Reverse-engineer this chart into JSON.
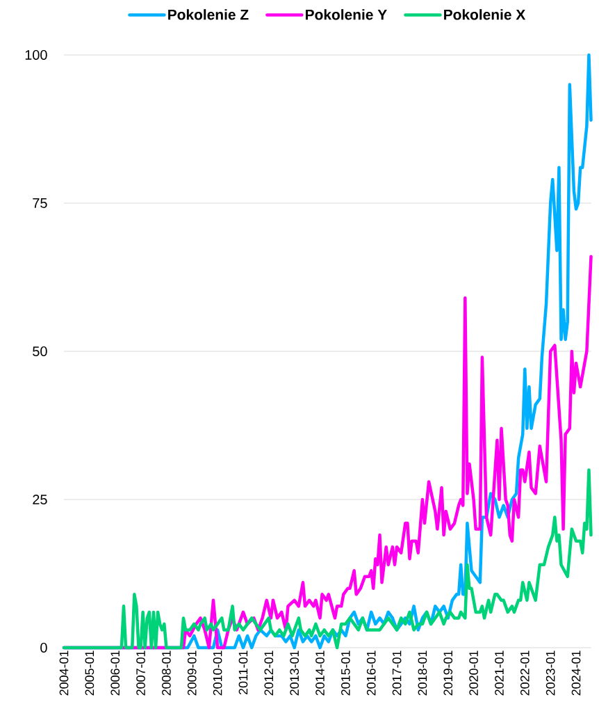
{
  "chart_data": {
    "type": "line",
    "xlim": [
      "2004-01",
      "2024-08"
    ],
    "xticks": [
      "2004-01",
      "2005-01",
      "2006-01",
      "2007-01",
      "2008-01",
      "2009-01",
      "2010-01",
      "2011-01",
      "2012-01",
      "2013-01",
      "2014-01",
      "2015-01",
      "2016-01",
      "2017-01",
      "2018-01",
      "2019-01",
      "2020-01",
      "2021-01",
      "2022-01",
      "2023-01",
      "2024-01"
    ],
    "ylim": [
      0,
      100
    ],
    "yticks": [
      0,
      25,
      50,
      75,
      100
    ],
    "grid": "y",
    "legend": "top",
    "marker": "none",
    "line_style": "solid",
    "series": [
      {
        "name": "Pokolenie Z",
        "color": "#00b0ff",
        "x": [
          "2004-01",
          "2008-11",
          "2009-02",
          "2009-04",
          "2009-11",
          "2010-01",
          "2010-03",
          "2010-09",
          "2010-11",
          "2011-01",
          "2011-03",
          "2011-05",
          "2011-07",
          "2011-09",
          "2011-12",
          "2012-02",
          "2012-04",
          "2012-07",
          "2012-09",
          "2012-11",
          "2013-01",
          "2013-03",
          "2013-05",
          "2013-07",
          "2013-09",
          "2013-11",
          "2014-01",
          "2014-03",
          "2014-05",
          "2014-07",
          "2014-09",
          "2014-11",
          "2015-01",
          "2015-03",
          "2015-05",
          "2015-07",
          "2015-09",
          "2015-11",
          "2016-01",
          "2016-03",
          "2016-05",
          "2016-07",
          "2016-09",
          "2016-11",
          "2017-01",
          "2017-03",
          "2017-05",
          "2017-07",
          "2017-09",
          "2017-11",
          "2018-01",
          "2018-03",
          "2018-05",
          "2018-07",
          "2018-09",
          "2018-11",
          "2019-01",
          "2019-03",
          "2019-05",
          "2019-06",
          "2019-07",
          "2019-08",
          "2019-09",
          "2019-10",
          "2019-11",
          "2019-12",
          "2020-02",
          "2020-04",
          "2020-05",
          "2020-07",
          "2020-09",
          "2020-11",
          "2021-01",
          "2021-03",
          "2021-05",
          "2021-07",
          "2021-09",
          "2021-10",
          "2021-12",
          "2022-01",
          "2022-02",
          "2022-03",
          "2022-04",
          "2022-06",
          "2022-08",
          "2022-09",
          "2022-11",
          "2023-01",
          "2023-02",
          "2023-04",
          "2023-05",
          "2023-06",
          "2023-07",
          "2023-08",
          "2023-09",
          "2023-10",
          "2023-12",
          "2024-01",
          "2024-02",
          "2024-03",
          "2024-04",
          "2024-06",
          "2024-07",
          "2024-08"
        ],
        "values": [
          0,
          0,
          2,
          0,
          0,
          3,
          0,
          0,
          2,
          0,
          2,
          0,
          2,
          3,
          2,
          3,
          2,
          2,
          1,
          2,
          0,
          3,
          1,
          2,
          1,
          2,
          0,
          2,
          1,
          3,
          2,
          3,
          2,
          5,
          6,
          4,
          5,
          3,
          6,
          4,
          5,
          4,
          6,
          5,
          3,
          4,
          5,
          4,
          7,
          3,
          5,
          6,
          4,
          7,
          6,
          7,
          5,
          8,
          9,
          9,
          14,
          9,
          9,
          21,
          17,
          13,
          12,
          11,
          22,
          22,
          26,
          25,
          22,
          24,
          22,
          25,
          26,
          32,
          36,
          47,
          37,
          44,
          37,
          41,
          42,
          49,
          58,
          75,
          79,
          67,
          81,
          52,
          57,
          52,
          55,
          95,
          77,
          74,
          75,
          81,
          81,
          88,
          100,
          89
        ]
      },
      {
        "name": "Pokolenie Y",
        "color": "#ff00ee",
        "x": [
          "2004-01",
          "2008-09",
          "2008-10",
          "2008-12",
          "2009-03",
          "2009-05",
          "2009-07",
          "2009-09",
          "2009-11",
          "2010-01",
          "2010-04",
          "2010-06",
          "2010-08",
          "2010-10",
          "2011-01",
          "2011-03",
          "2011-06",
          "2011-08",
          "2011-10",
          "2011-12",
          "2012-02",
          "2012-03",
          "2012-05",
          "2012-07",
          "2012-09",
          "2012-10",
          "2013-01",
          "2013-03",
          "2013-05",
          "2013-06",
          "2013-08",
          "2013-10",
          "2013-11",
          "2014-01",
          "2014-02",
          "2014-04",
          "2014-05",
          "2014-08",
          "2014-09",
          "2014-11",
          "2014-12",
          "2015-02",
          "2015-03",
          "2015-05",
          "2015-06",
          "2015-08",
          "2015-10",
          "2015-12",
          "2016-01",
          "2016-02",
          "2016-03",
          "2016-04",
          "2016-05",
          "2016-06",
          "2016-08",
          "2016-09",
          "2016-11",
          "2016-12",
          "2017-01",
          "2017-03",
          "2017-05",
          "2017-06",
          "2017-07",
          "2017-08",
          "2017-10",
          "2017-11",
          "2018-01",
          "2018-02",
          "2018-04",
          "2018-07",
          "2018-08",
          "2018-10",
          "2018-11",
          "2018-12",
          "2019-02",
          "2019-04",
          "2019-06",
          "2019-07",
          "2019-08",
          "2019-09",
          "2019-10",
          "2019-11",
          "2020-01",
          "2020-02",
          "2020-04",
          "2020-05",
          "2020-07",
          "2020-09",
          "2020-12",
          "2021-01",
          "2021-02",
          "2021-04",
          "2021-05",
          "2021-06",
          "2021-07",
          "2021-08",
          "2021-10",
          "2021-11",
          "2021-12",
          "2022-01",
          "2022-03",
          "2022-04",
          "2022-06",
          "2022-08",
          "2022-11",
          "2023-01",
          "2023-03",
          "2023-06",
          "2023-07",
          "2023-08",
          "2023-10",
          "2023-11",
          "2023-12",
          "2024-01",
          "2024-03",
          "2024-06",
          "2024-08"
        ],
        "values": [
          0,
          0,
          3,
          2,
          4,
          5,
          3,
          0,
          8,
          0,
          0,
          3,
          5,
          3,
          6,
          4,
          5,
          3,
          5,
          8,
          5,
          8,
          5,
          6,
          3,
          7,
          8,
          7,
          11,
          7,
          8,
          7,
          8,
          5,
          9,
          8,
          9,
          5,
          7,
          7,
          9,
          10,
          10,
          13,
          9,
          10,
          12,
          12,
          13,
          10,
          15,
          14,
          19,
          11,
          17,
          14,
          17,
          14,
          17,
          16,
          21,
          21,
          15,
          18,
          18,
          16,
          25,
          21,
          28,
          23,
          20,
          27,
          19,
          23,
          20,
          21,
          24,
          25,
          24,
          59,
          26,
          31,
          25,
          20,
          20,
          49,
          22,
          19,
          35,
          25,
          37,
          25,
          24,
          19,
          18,
          25,
          22,
          30,
          30,
          28,
          33,
          27,
          26,
          34,
          28,
          50,
          51,
          35,
          20,
          36,
          37,
          50,
          43,
          48,
          44,
          50,
          66
        ]
      },
      {
        "name": "Pokolenie X",
        "color": "#00d27a",
        "x": [
          "2004-01",
          "2006-04",
          "2006-05",
          "2006-06",
          "2006-09",
          "2006-10",
          "2006-11",
          "2006-12",
          "2007-01",
          "2007-02",
          "2007-03",
          "2007-04",
          "2007-05",
          "2007-06",
          "2007-07",
          "2007-08",
          "2007-09",
          "2007-10",
          "2007-11",
          "2007-12",
          "2008-01",
          "2008-08",
          "2008-09",
          "2008-10",
          "2008-12",
          "2009-02",
          "2009-04",
          "2009-05",
          "2009-07",
          "2009-08",
          "2009-10",
          "2009-11",
          "2010-01",
          "2010-03",
          "2010-04",
          "2010-06",
          "2010-08",
          "2010-09",
          "2010-11",
          "2011-01",
          "2011-03",
          "2011-05",
          "2011-07",
          "2011-09",
          "2011-11",
          "2012-01",
          "2012-02",
          "2012-04",
          "2012-06",
          "2012-08",
          "2012-10",
          "2012-12",
          "2013-01",
          "2013-03",
          "2013-04",
          "2013-06",
          "2013-08",
          "2013-09",
          "2013-11",
          "2014-01",
          "2014-03",
          "2014-05",
          "2014-07",
          "2014-09",
          "2014-11",
          "2015-01",
          "2015-03",
          "2015-05",
          "2015-07",
          "2015-09",
          "2015-11",
          "2016-01",
          "2016-05",
          "2016-07",
          "2016-09",
          "2016-11",
          "2017-01",
          "2017-03",
          "2017-05",
          "2017-07",
          "2017-09",
          "2017-11",
          "2018-01",
          "2018-03",
          "2018-05",
          "2018-07",
          "2018-09",
          "2018-11",
          "2018-12",
          "2019-02",
          "2019-04",
          "2019-06",
          "2019-07",
          "2019-09",
          "2019-10",
          "2019-11",
          "2019-12",
          "2020-02",
          "2020-04",
          "2020-05",
          "2020-06",
          "2020-08",
          "2020-09",
          "2020-11",
          "2020-12",
          "2021-02",
          "2021-03",
          "2021-05",
          "2021-07",
          "2021-08",
          "2021-10",
          "2021-11",
          "2021-12",
          "2022-02",
          "2022-03",
          "2022-06",
          "2022-08",
          "2022-10",
          "2022-12",
          "2023-02",
          "2023-03",
          "2023-04",
          "2023-05",
          "2023-06",
          "2023-09",
          "2023-11",
          "2024-01",
          "2024-03",
          "2024-04",
          "2024-05",
          "2024-06",
          "2024-07",
          "2024-08"
        ],
        "values": [
          0,
          0,
          7,
          0,
          0,
          9,
          7,
          0,
          0,
          6,
          0,
          5,
          6,
          0,
          6,
          0,
          6,
          4,
          3,
          4,
          0,
          0,
          5,
          3,
          3,
          4,
          3,
          4,
          5,
          3,
          4,
          3,
          4,
          5,
          3,
          3,
          7,
          3,
          4,
          3,
          4,
          5,
          4,
          3,
          4,
          5,
          3,
          2,
          3,
          2,
          4,
          2,
          3,
          5,
          3,
          2,
          3,
          2,
          4,
          2,
          3,
          2,
          3,
          0,
          4,
          4,
          5,
          4,
          3,
          5,
          3,
          3,
          3,
          4,
          5,
          4,
          3,
          5,
          4,
          6,
          3,
          4,
          4,
          6,
          4,
          5,
          6,
          4,
          5,
          6,
          5,
          5,
          6,
          5,
          14,
          10,
          10,
          6,
          6,
          7,
          5,
          8,
          6,
          9,
          9,
          8,
          8,
          6,
          7,
          6,
          8,
          8,
          11,
          8,
          11,
          8,
          14,
          14,
          17,
          19,
          22,
          18,
          19,
          14,
          12,
          20,
          18,
          18,
          16,
          21,
          20,
          30,
          19
        ]
      }
    ]
  }
}
